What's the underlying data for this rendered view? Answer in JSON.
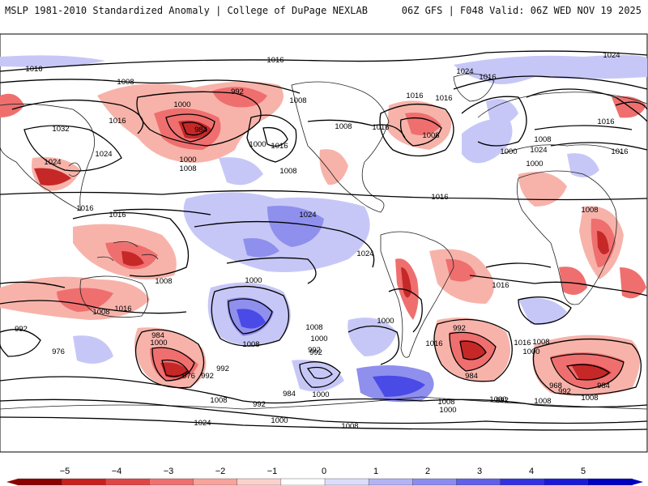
{
  "header": {
    "left_title": "MSLP 1981-2010 Standardized Anomaly | College of DuPage NEXLAB",
    "right_title": "06Z GFS | F048 Valid: 06Z WED NOV 19 2025"
  },
  "map": {
    "projection": "global",
    "contour_labels": [
      "1016",
      "1008",
      "1032",
      "1024",
      "1024",
      "1016",
      "1008",
      "1016",
      "1016",
      "1008",
      "1008",
      "1016",
      "1000",
      "1008",
      "1016",
      "992",
      "1000",
      "984",
      "1000",
      "1008",
      "1016",
      "1024",
      "1008",
      "1016",
      "1016",
      "1016",
      "1008",
      "1000",
      "1024",
      "1016",
      "1024",
      "1016",
      "1008",
      "1024",
      "1016",
      "1000",
      "1008",
      "1016",
      "1024",
      "1000",
      "1008",
      "992",
      "976",
      "984",
      "1000",
      "992",
      "992",
      "1000",
      "992",
      "984",
      "976",
      "968",
      "984",
      "992",
      "1016",
      "1008",
      "1000",
      "992",
      "1000",
      "1008",
      "1016",
      "1008",
      "1000",
      "1008",
      "1016",
      "1008",
      "1000",
      "992",
      "984",
      "992",
      "1000",
      "1008",
      "1024",
      "992",
      "1000",
      "1008"
    ]
  },
  "colorbar": {
    "ticks": [
      "−5",
      "−4",
      "−3",
      "−2",
      "−1",
      "0",
      "1",
      "2",
      "3",
      "4",
      "5"
    ],
    "colors": [
      "#8b0000",
      "#c81f1f",
      "#e04545",
      "#ef7070",
      "#f7a49c",
      "#fbd1cb",
      "#ffffff",
      "#dcdcfb",
      "#b3b3f4",
      "#8c8cef",
      "#6060e8",
      "#3232e0",
      "#1a1ad6",
      "#0000c0"
    ]
  },
  "colors": {
    "neg_strong": "#c62828",
    "neg_mid": "#ef6f6f",
    "neg_light": "#f7b3aa",
    "pos_light": "#c7c7f7",
    "pos_mid": "#8f8fee",
    "pos_strong": "#4a4ae6",
    "isobar": "#000000"
  }
}
